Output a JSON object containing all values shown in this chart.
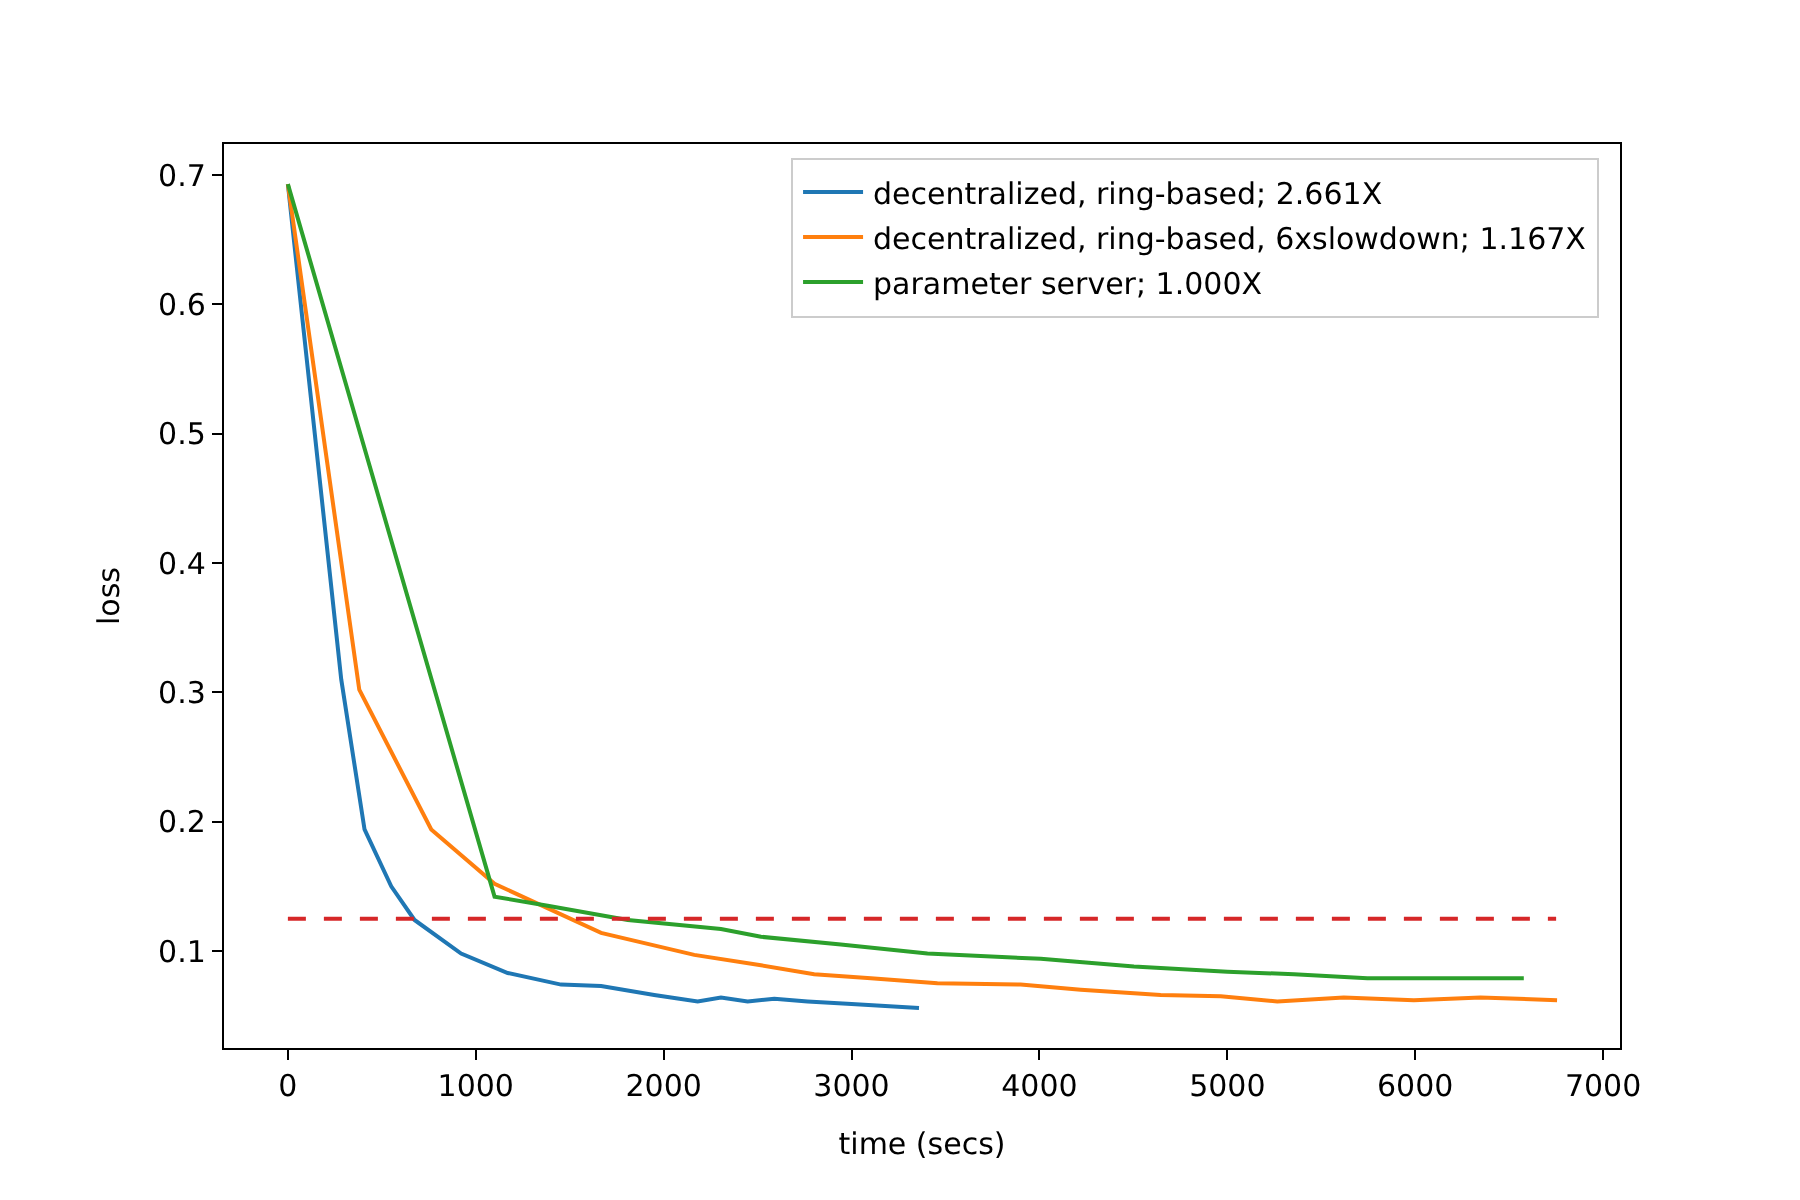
{
  "chart_data": {
    "type": "line",
    "xlabel": "time (secs)",
    "ylabel": "loss",
    "xlim": [
      -340,
      7090
    ],
    "xticks": [
      0,
      1000,
      2000,
      3000,
      4000,
      5000,
      6000,
      7000
    ],
    "ylim": [
      0.025,
      0.724
    ],
    "yticks": [
      0.1,
      0.2,
      0.3,
      0.4,
      0.5,
      0.6,
      0.7
    ],
    "legend": "top right",
    "line_style": "solid",
    "marker": "none",
    "series": [
      {
        "name": "decentralized, ring-based; 2.661X",
        "color": "#1f77b4",
        "x": [
          0,
          284,
          408,
          550,
          674,
          922,
          1170,
          1454,
          1667,
          1950,
          2181,
          2305,
          2447,
          2589,
          2766,
          3000,
          3359
        ],
        "values": [
          0.693,
          0.31,
          0.194,
          0.15,
          0.124,
          0.098,
          0.083,
          0.074,
          0.073,
          0.066,
          0.061,
          0.064,
          0.061,
          0.063,
          0.061,
          0.059,
          0.056
        ]
      },
      {
        "name": "decentralized, ring-based, 6xslowdown; 1.167X",
        "color": "#ff7f0e",
        "x": [
          0,
          380,
          763,
          1100,
          1667,
          2163,
          2518,
          2801,
          3103,
          3457,
          3900,
          4220,
          4645,
          4965,
          5266,
          5620,
          5993,
          6347,
          6755
        ],
        "values": [
          0.693,
          0.302,
          0.194,
          0.152,
          0.114,
          0.097,
          0.089,
          0.082,
          0.079,
          0.075,
          0.074,
          0.07,
          0.066,
          0.065,
          0.061,
          0.064,
          0.062,
          0.064,
          0.062
        ]
      },
      {
        "name": "parameter server; 1.000X",
        "color": "#2ca02c",
        "x": [
          0,
          1100,
          1383,
          1809,
          2305,
          2518,
          2943,
          3404,
          4007,
          4503,
          5000,
          5355,
          5745,
          6578
        ],
        "values": [
          0.693,
          0.142,
          0.135,
          0.124,
          0.117,
          0.111,
          0.105,
          0.098,
          0.094,
          0.088,
          0.084,
          0.082,
          0.079,
          0.079
        ]
      },
      {
        "color": "#d62728",
        "line_style": "dashed",
        "x": [
          0,
          6750
        ],
        "values": [
          0.125,
          0.125
        ]
      }
    ]
  }
}
